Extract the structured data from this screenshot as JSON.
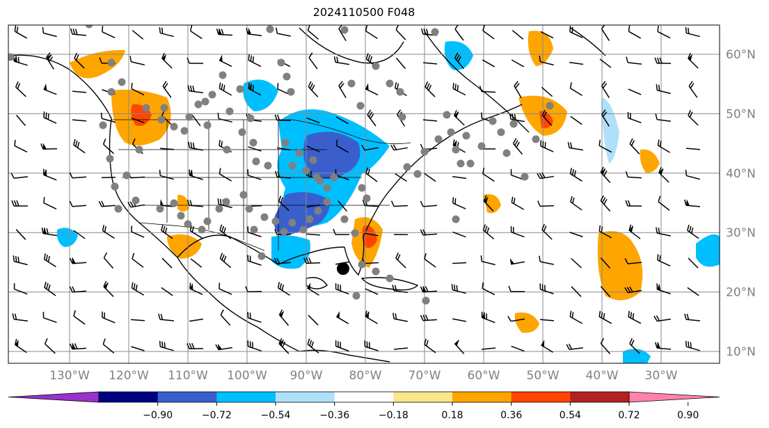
{
  "title": "2024110500 F048",
  "map": {
    "lon_range": [
      -136,
      -16
    ],
    "lat_range": [
      8,
      65
    ],
    "lon_labels": [
      "130°W",
      "120°W",
      "110°W",
      "100°W",
      "90°W",
      "80°W",
      "70°W",
      "60°W",
      "50°W",
      "40°W",
      "30°W"
    ],
    "lon_values": [
      -130,
      -120,
      -110,
      -100,
      -90,
      -80,
      -70,
      -60,
      -50,
      -40,
      -30
    ],
    "lat_labels": [
      "10°N",
      "20°N",
      "30°N",
      "40°N",
      "50°N",
      "60°N"
    ],
    "lat_values": [
      10,
      20,
      30,
      40,
      50,
      60
    ]
  },
  "colorbar": {
    "tick_labels": [
      "−0.90",
      "−0.72",
      "−0.54",
      "−0.36",
      "−0.18",
      "0.18",
      "0.36",
      "0.54",
      "0.72",
      "0.90"
    ],
    "colors": [
      "#9932cc",
      "#000080",
      "#3a5fcd",
      "#00bfff",
      "#afe0fa",
      "#ffffff",
      "#fce68a",
      "#ffa500",
      "#ff4500",
      "#b22222",
      "#ff82ab"
    ]
  },
  "contour_colors": {
    "light_blue": "#afe0fa",
    "blue": "#00bfff",
    "medium_blue": "#3a5fcd",
    "yellow": "#fce68a",
    "orange": "#ffa500",
    "red_orange": "#ff4500"
  }
}
